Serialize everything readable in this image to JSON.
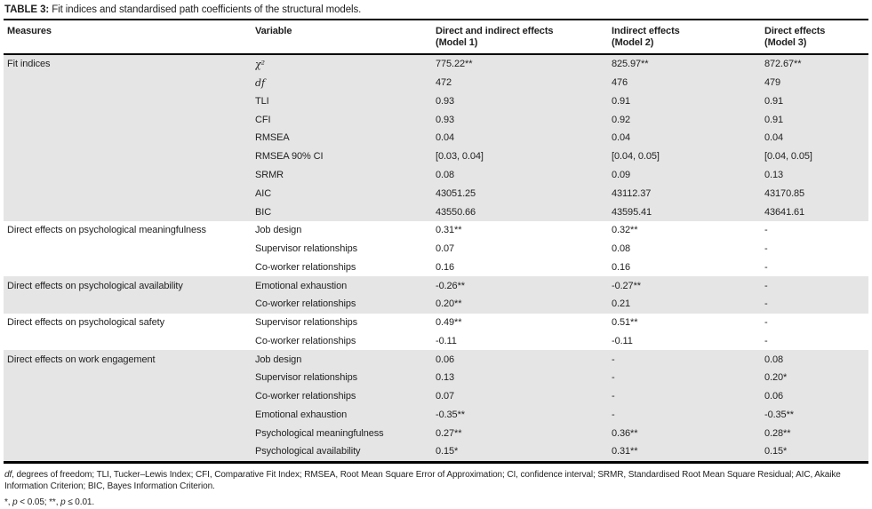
{
  "title": {
    "label": "TABLE 3:",
    "text": " Fit indices and standardised path coefficients of the structural models."
  },
  "colors": {
    "shaded_row": "#e5e5e5",
    "rule": "#000000",
    "text": "#1f1f1f"
  },
  "header": {
    "measures": "Measures",
    "variable": "Variable",
    "model1": "Direct and indirect effects\n(Model 1)",
    "model2": "Indirect effects\n(Model 2)",
    "model3": "Direct effects\n(Model 3)"
  },
  "sections": [
    {
      "measure": "Fit indices",
      "shaded": true,
      "rows": [
        {
          "variable": "χ²",
          "italic": true,
          "m1": "775.22**",
          "m2": "825.97**",
          "m3": "872.67**"
        },
        {
          "variable": "df",
          "italic": true,
          "m1": "472",
          "m2": "476",
          "m3": "479"
        },
        {
          "variable": "TLI",
          "m1": "0.93",
          "m2": "0.91",
          "m3": "0.91"
        },
        {
          "variable": "CFI",
          "m1": "0.93",
          "m2": "0.92",
          "m3": "0.91"
        },
        {
          "variable": "RMSEA",
          "m1": "0.04",
          "m2": "0.04",
          "m3": "0.04"
        },
        {
          "variable": "RMSEA 90% CI",
          "m1": "[0.03, 0.04]",
          "m2": "[0.04, 0.05]",
          "m3": "[0.04, 0.05]"
        },
        {
          "variable": "SRMR",
          "m1": "0.08",
          "m2": "0.09",
          "m3": "0.13"
        },
        {
          "variable": "AIC",
          "m1": "43051.25",
          "m2": "43112.37",
          "m3": "43170.85"
        },
        {
          "variable": "BIC",
          "m1": "43550.66",
          "m2": "43595.41",
          "m3": "43641.61"
        }
      ]
    },
    {
      "measure": "Direct effects on psychological meaningfulness",
      "shaded": false,
      "rows": [
        {
          "variable": "Job design",
          "m1": "0.31**",
          "m2": "0.32**",
          "m3": "-"
        },
        {
          "variable": "Supervisor relationships",
          "m1": "0.07",
          "m2": "0.08",
          "m3": "-"
        },
        {
          "variable": "Co-worker relationships",
          "m1": "0.16",
          "m2": "0.16",
          "m3": "-"
        }
      ]
    },
    {
      "measure": "Direct effects on psychological availability",
      "shaded": true,
      "rows": [
        {
          "variable": "Emotional exhaustion",
          "m1": "-0.26**",
          "m2": "-0.27**",
          "m3": "-"
        },
        {
          "variable": "Co-worker relationships",
          "m1": "0.20**",
          "m2": "0.21",
          "m3": "-"
        }
      ]
    },
    {
      "measure": "Direct effects on psychological safety",
      "shaded": false,
      "rows": [
        {
          "variable": "Supervisor relationships",
          "m1": "0.49**",
          "m2": "0.51**",
          "m3": "-"
        },
        {
          "variable": "Co-worker relationships",
          "m1": "-0.11",
          "m2": "-0.11",
          "m3": "-"
        }
      ]
    },
    {
      "measure": "Direct effects on work engagement",
      "shaded": true,
      "rows": [
        {
          "variable": "Job design",
          "m1": "0.06",
          "m2": "-",
          "m3": "0.08"
        },
        {
          "variable": "Supervisor relationships",
          "m1": "0.13",
          "m2": "-",
          "m3": "0.20*"
        },
        {
          "variable": "Co-worker relationships",
          "m1": "0.07",
          "m2": "-",
          "m3": "0.06"
        },
        {
          "variable": "Emotional exhaustion",
          "m1": "-0.35**",
          "m2": "-",
          "m3": "-0.35**"
        },
        {
          "variable": "Psychological meaningfulness",
          "m1": "0.27**",
          "m2": "0.36**",
          "m3": "0.28**"
        },
        {
          "variable": "Psychological availability",
          "m1": "0.15*",
          "m2": "0.31**",
          "m3": "0.15*"
        }
      ]
    }
  ],
  "footnotes": {
    "abbreviations": [
      {
        "text": "df",
        "italic": true
      },
      {
        "text": ", degrees of freedom; TLI, Tucker–Lewis Index; CFI, Comparative Fit Index; RMSEA, Root Mean Square Error of Approximation; CI, confidence interval; SRMR, Standardised Root Mean Square Residual; AIC, Akaike Information Criterion; BIC, Bayes Information Criterion."
      }
    ],
    "significance": [
      {
        "text": "*, "
      },
      {
        "text": "p",
        "italic": true
      },
      {
        "text": " < 0.05; **, "
      },
      {
        "text": "p",
        "italic": true
      },
      {
        "text": " ≤ 0.01."
      }
    ]
  }
}
